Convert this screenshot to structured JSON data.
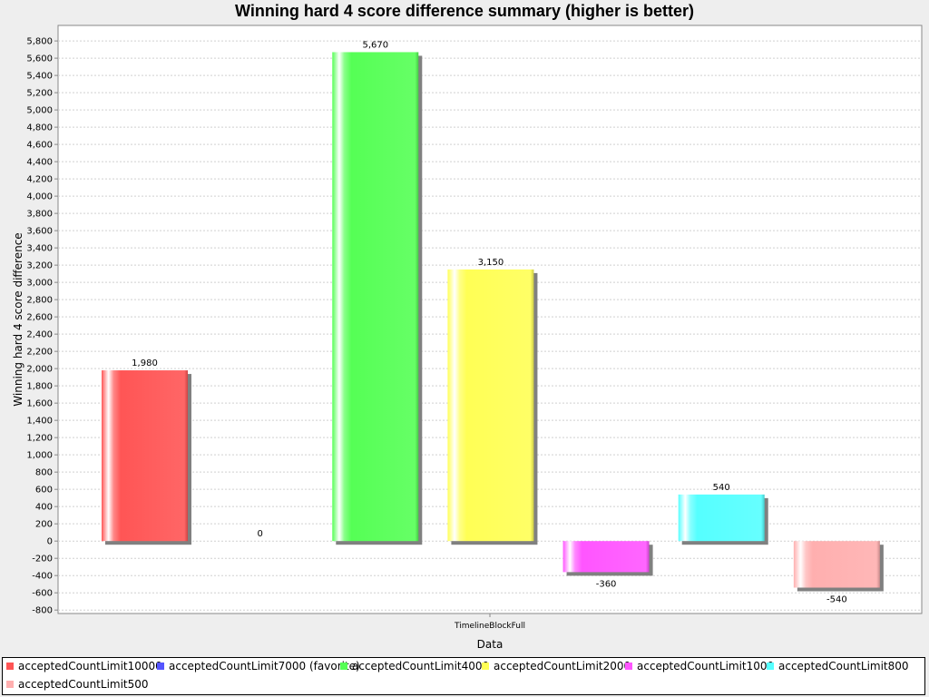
{
  "chart_data": {
    "type": "bar",
    "title": "Winning hard 4 score difference summary (higher is better)",
    "xlabel": "Data",
    "ylabel": "Winning hard 4 score difference",
    "categories": [
      "TimelineBlockFull"
    ],
    "ylim": [
      -840,
      5980
    ],
    "yticks": [
      -800,
      -600,
      -400,
      -200,
      0,
      200,
      400,
      600,
      800,
      1000,
      1200,
      1400,
      1600,
      1800,
      2000,
      2200,
      2400,
      2600,
      2800,
      3000,
      3200,
      3400,
      3600,
      3800,
      4000,
      4200,
      4400,
      4600,
      4800,
      5000,
      5200,
      5400,
      5600,
      5800
    ],
    "grid": true,
    "legend_position": "bottom",
    "series": [
      {
        "name": "acceptedCountLimit10000",
        "values": [
          1980
        ],
        "label": "1,980",
        "color": "#ff5555"
      },
      {
        "name": "acceptedCountLimit7000 (favorite)",
        "values": [
          0
        ],
        "label": "0",
        "color": "#5555ff"
      },
      {
        "name": "acceptedCountLimit4000",
        "values": [
          5670
        ],
        "label": "5,670",
        "color": "#55ff55"
      },
      {
        "name": "acceptedCountLimit2000",
        "values": [
          3150
        ],
        "label": "3,150",
        "color": "#ffff55"
      },
      {
        "name": "acceptedCountLimit1000",
        "values": [
          -360
        ],
        "label": "-360",
        "color": "#ff55ff"
      },
      {
        "name": "acceptedCountLimit800",
        "values": [
          540
        ],
        "label": "540",
        "color": "#55ffff"
      },
      {
        "name": "acceptedCountLimit500",
        "values": [
          -540
        ],
        "label": "-540",
        "color": "#ffafaf"
      }
    ]
  }
}
